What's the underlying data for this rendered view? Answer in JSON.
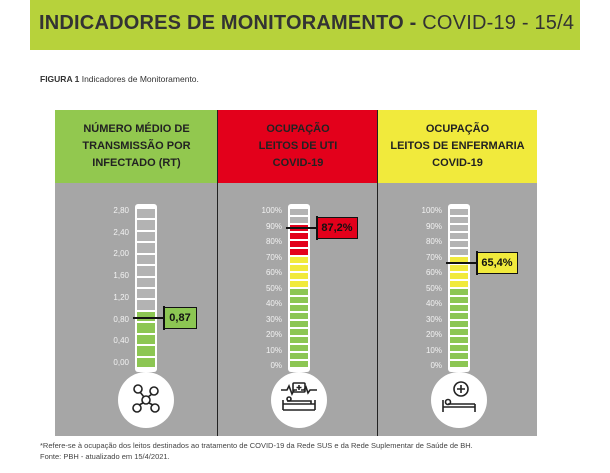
{
  "header": {
    "title_bold": "INDICADORES DE MONITORAMENTO -",
    "title_rest": " COVID-19 - 15/4",
    "accent_color": "#b7d23b"
  },
  "figure": {
    "label": "FIGURA 1",
    "caption": " Indicadores de Monitoramento."
  },
  "panels": [
    {
      "header_lines": [
        "NÚMERO MÉDIO DE",
        "TRANSMISSÃO POR",
        "INFECTADO (RT)"
      ],
      "header_color": "#92c84f",
      "icon": "virus-transmission-icon"
    },
    {
      "header_lines": [
        "OCUPAÇÃO",
        "LEITOS DE UTI",
        "COVID-19"
      ],
      "header_color": "#e3001b",
      "icon": "icu-bed-monitor-icon"
    },
    {
      "header_lines": [
        "OCUPAÇÃO",
        "LEITOS DE ENFERMARIA",
        "COVID-19"
      ],
      "header_color": "#f1ea3c",
      "icon": "ward-bed-cross-icon"
    }
  ],
  "chart_data": [
    {
      "type": "gauge",
      "title": "NÚMERO MÉDIO DE TRANSMISSÃO POR INFECTADO (RT)",
      "ticks": [
        "2,80",
        "2,40",
        "2,00",
        "1,60",
        "1,20",
        "0,80",
        "0,40",
        "0,00"
      ],
      "range": [
        0,
        2.8
      ],
      "value": 0.87,
      "value_label": "0,87",
      "fill_color": "#8cc653",
      "callout_color": "#8cc653"
    },
    {
      "type": "gauge",
      "title": "OCUPAÇÃO LEITOS DE UTI COVID-19",
      "ticks": [
        "100%",
        "90%",
        "80%",
        "70%",
        "60%",
        "50%",
        "40%",
        "30%",
        "20%",
        "10%",
        "0%"
      ],
      "range": [
        0,
        100
      ],
      "value": 87.2,
      "value_label": "87,2%",
      "zones": [
        {
          "from": 0,
          "to": 50,
          "color": "#8cc653"
        },
        {
          "from": 50,
          "to": 70,
          "color": "#f1ea3c"
        },
        {
          "from": 70,
          "to": 100,
          "color": "#e3001b"
        }
      ],
      "callout_color": "#e3001b"
    },
    {
      "type": "gauge",
      "title": "OCUPAÇÃO LEITOS DE ENFERMARIA COVID-19",
      "ticks": [
        "100%",
        "90%",
        "80%",
        "70%",
        "60%",
        "50%",
        "40%",
        "30%",
        "20%",
        "10%",
        "0%"
      ],
      "range": [
        0,
        100
      ],
      "value": 65.4,
      "value_label": "65,4%",
      "zones": [
        {
          "from": 0,
          "to": 50,
          "color": "#8cc653"
        },
        {
          "from": 50,
          "to": 70,
          "color": "#f1ea3c"
        },
        {
          "from": 70,
          "to": 100,
          "color": "#e3001b"
        }
      ],
      "callout_color": "#f1ea3c"
    }
  ],
  "footnote": {
    "line1": "*Refere-se à ocupação dos leitos destinados ao tratamento de COVID-19 da Rede SUS e da Rede Suplementar de Saúde de BH.",
    "line2": "Fonte: PBH - atualizado em 15/4/2021."
  }
}
